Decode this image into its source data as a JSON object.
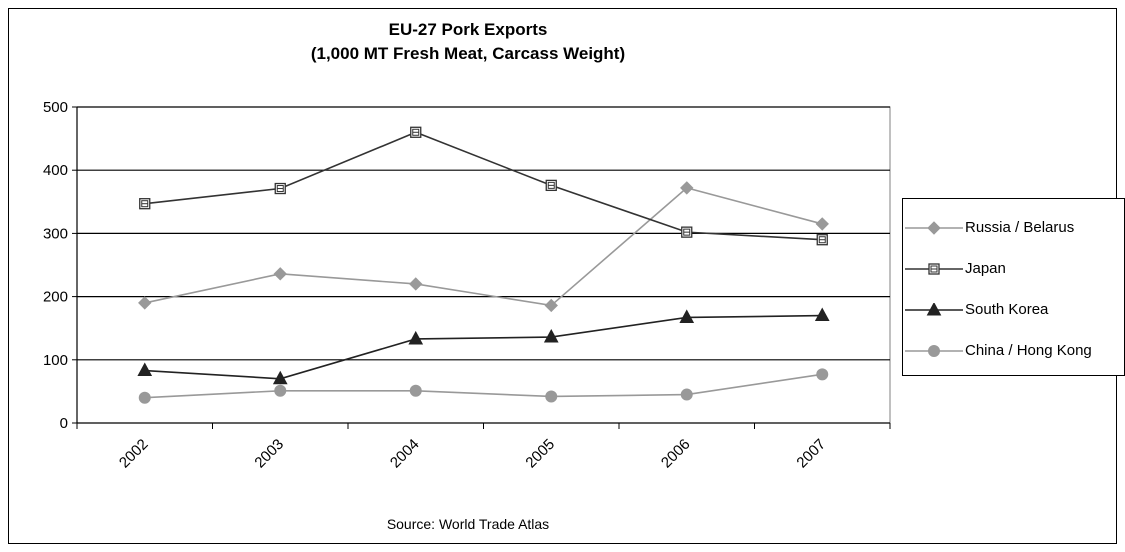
{
  "chart_data": {
    "type": "line",
    "title": "EU-27 Pork Exports",
    "subtitle": "(1,000 MT Fresh Meat, Carcass Weight)",
    "source": "Source: World Trade Atlas",
    "categories": [
      "2002",
      "2003",
      "2004",
      "2005",
      "2006",
      "2007"
    ],
    "y_ticks": [
      "0",
      "100",
      "200",
      "300",
      "400",
      "500"
    ],
    "ylim": [
      0,
      500
    ],
    "xlabel": "",
    "ylabel": "",
    "grid": true,
    "legend_position": "right",
    "series": [
      {
        "name": "Russia / Belarus",
        "marker": "diamond",
        "color": "#999999",
        "values": [
          190,
          236,
          220,
          186,
          372,
          315
        ]
      },
      {
        "name": "Japan",
        "marker": "square",
        "color": "#333333",
        "values": [
          347,
          371,
          460,
          376,
          302,
          290
        ]
      },
      {
        "name": "South Korea",
        "marker": "triangle",
        "color": "#222222",
        "values": [
          83,
          70,
          133,
          136,
          167,
          170
        ]
      },
      {
        "name": "China / Hong Kong",
        "marker": "circle",
        "color": "#999999",
        "values": [
          40,
          51,
          51,
          42,
          45,
          77
        ]
      }
    ]
  }
}
